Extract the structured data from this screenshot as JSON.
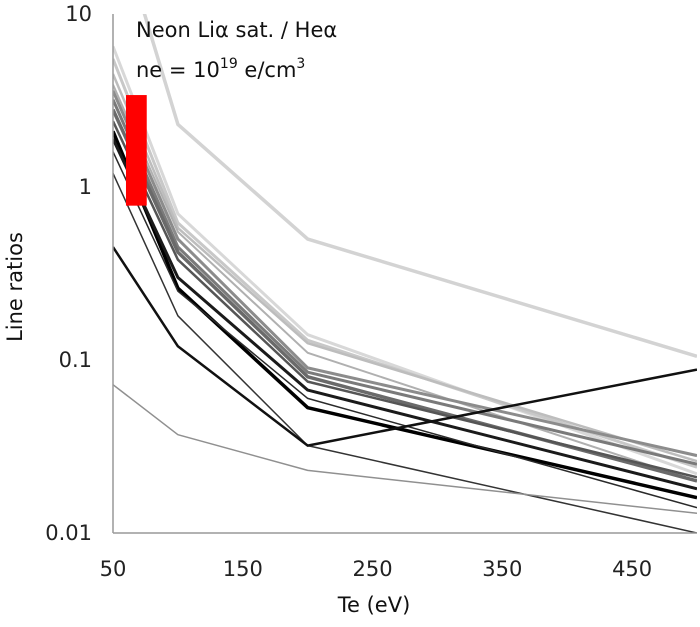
{
  "chart_data": {
    "type": "line",
    "xlabel": "Te (eV)",
    "ylabel": "Line ratios",
    "xlim": [
      50,
      500
    ],
    "ylim": [
      0.01,
      10
    ],
    "yscale": "log",
    "grid": false,
    "legend": "none",
    "x_ticks": [
      "50",
      "150",
      "250",
      "350",
      "450"
    ],
    "y_ticks": [
      "0.01",
      "0.1",
      "1",
      "10"
    ],
    "x_tick_values": [
      50,
      150,
      250,
      350,
      450
    ],
    "y_tick_values": [
      0.01,
      0.1,
      1,
      10
    ],
    "annotation": {
      "line1": "Neon Liα sat. / Heα",
      "line2_prefix": "ne = 10",
      "line2_sup1": "19",
      "line2_mid": " e/cm",
      "line2_sup2": "3"
    },
    "highlight": {
      "x": [
        60,
        76
      ],
      "y": [
        0.78,
        3.4
      ],
      "color": "#ff0000"
    },
    "x": [
      50,
      100,
      200,
      500
    ],
    "series": [
      {
        "values": [
          40,
          2.3,
          0.5,
          0.105
        ],
        "color": "#d3d3d3",
        "width": 3.5
      },
      {
        "values": [
          6.5,
          0.7,
          0.14,
          0.022
        ],
        "color": "#d8d8d8",
        "width": 3
      },
      {
        "values": [
          5.5,
          0.62,
          0.13,
          0.024
        ],
        "color": "#c8c8c8",
        "width": 3
      },
      {
        "values": [
          4.5,
          0.58,
          0.125,
          0.026
        ],
        "color": "#bdbdbd",
        "width": 2.5
      },
      {
        "values": [
          3.9,
          0.55,
          0.11,
          0.02
        ],
        "color": "#b0b0b0",
        "width": 2
      },
      {
        "values": [
          3.6,
          0.5,
          0.09,
          0.028
        ],
        "color": "#8c8c8c",
        "width": 3
      },
      {
        "values": [
          3.2,
          0.45,
          0.085,
          0.025
        ],
        "color": "#7a7a7a",
        "width": 3
      },
      {
        "values": [
          2.8,
          0.42,
          0.08,
          0.02
        ],
        "color": "#6a6a6a",
        "width": 3.5
      },
      {
        "values": [
          2.4,
          0.38,
          0.075,
          0.021
        ],
        "color": "#555555",
        "width": 2.5
      },
      {
        "values": [
          2.1,
          0.26,
          0.053,
          0.016
        ],
        "color": "#000000",
        "width": 3.5
      },
      {
        "values": [
          1.9,
          0.3,
          0.067,
          0.018
        ],
        "color": "#1a1a1a",
        "width": 3
      },
      {
        "values": [
          1.6,
          0.25,
          0.06,
          0.014
        ],
        "color": "#2a2a2a",
        "width": 1.5
      },
      {
        "values": [
          1.2,
          0.18,
          0.032,
          0.01
        ],
        "color": "#333333",
        "width": 1.5
      },
      {
        "values": [
          0.45,
          0.12,
          0.032,
          0.088
        ],
        "color": "#111111",
        "width": 2.5
      },
      {
        "values": [
          0.072,
          0.037,
          0.023,
          0.013
        ],
        "color": "#909090",
        "width": 1.5
      }
    ]
  }
}
